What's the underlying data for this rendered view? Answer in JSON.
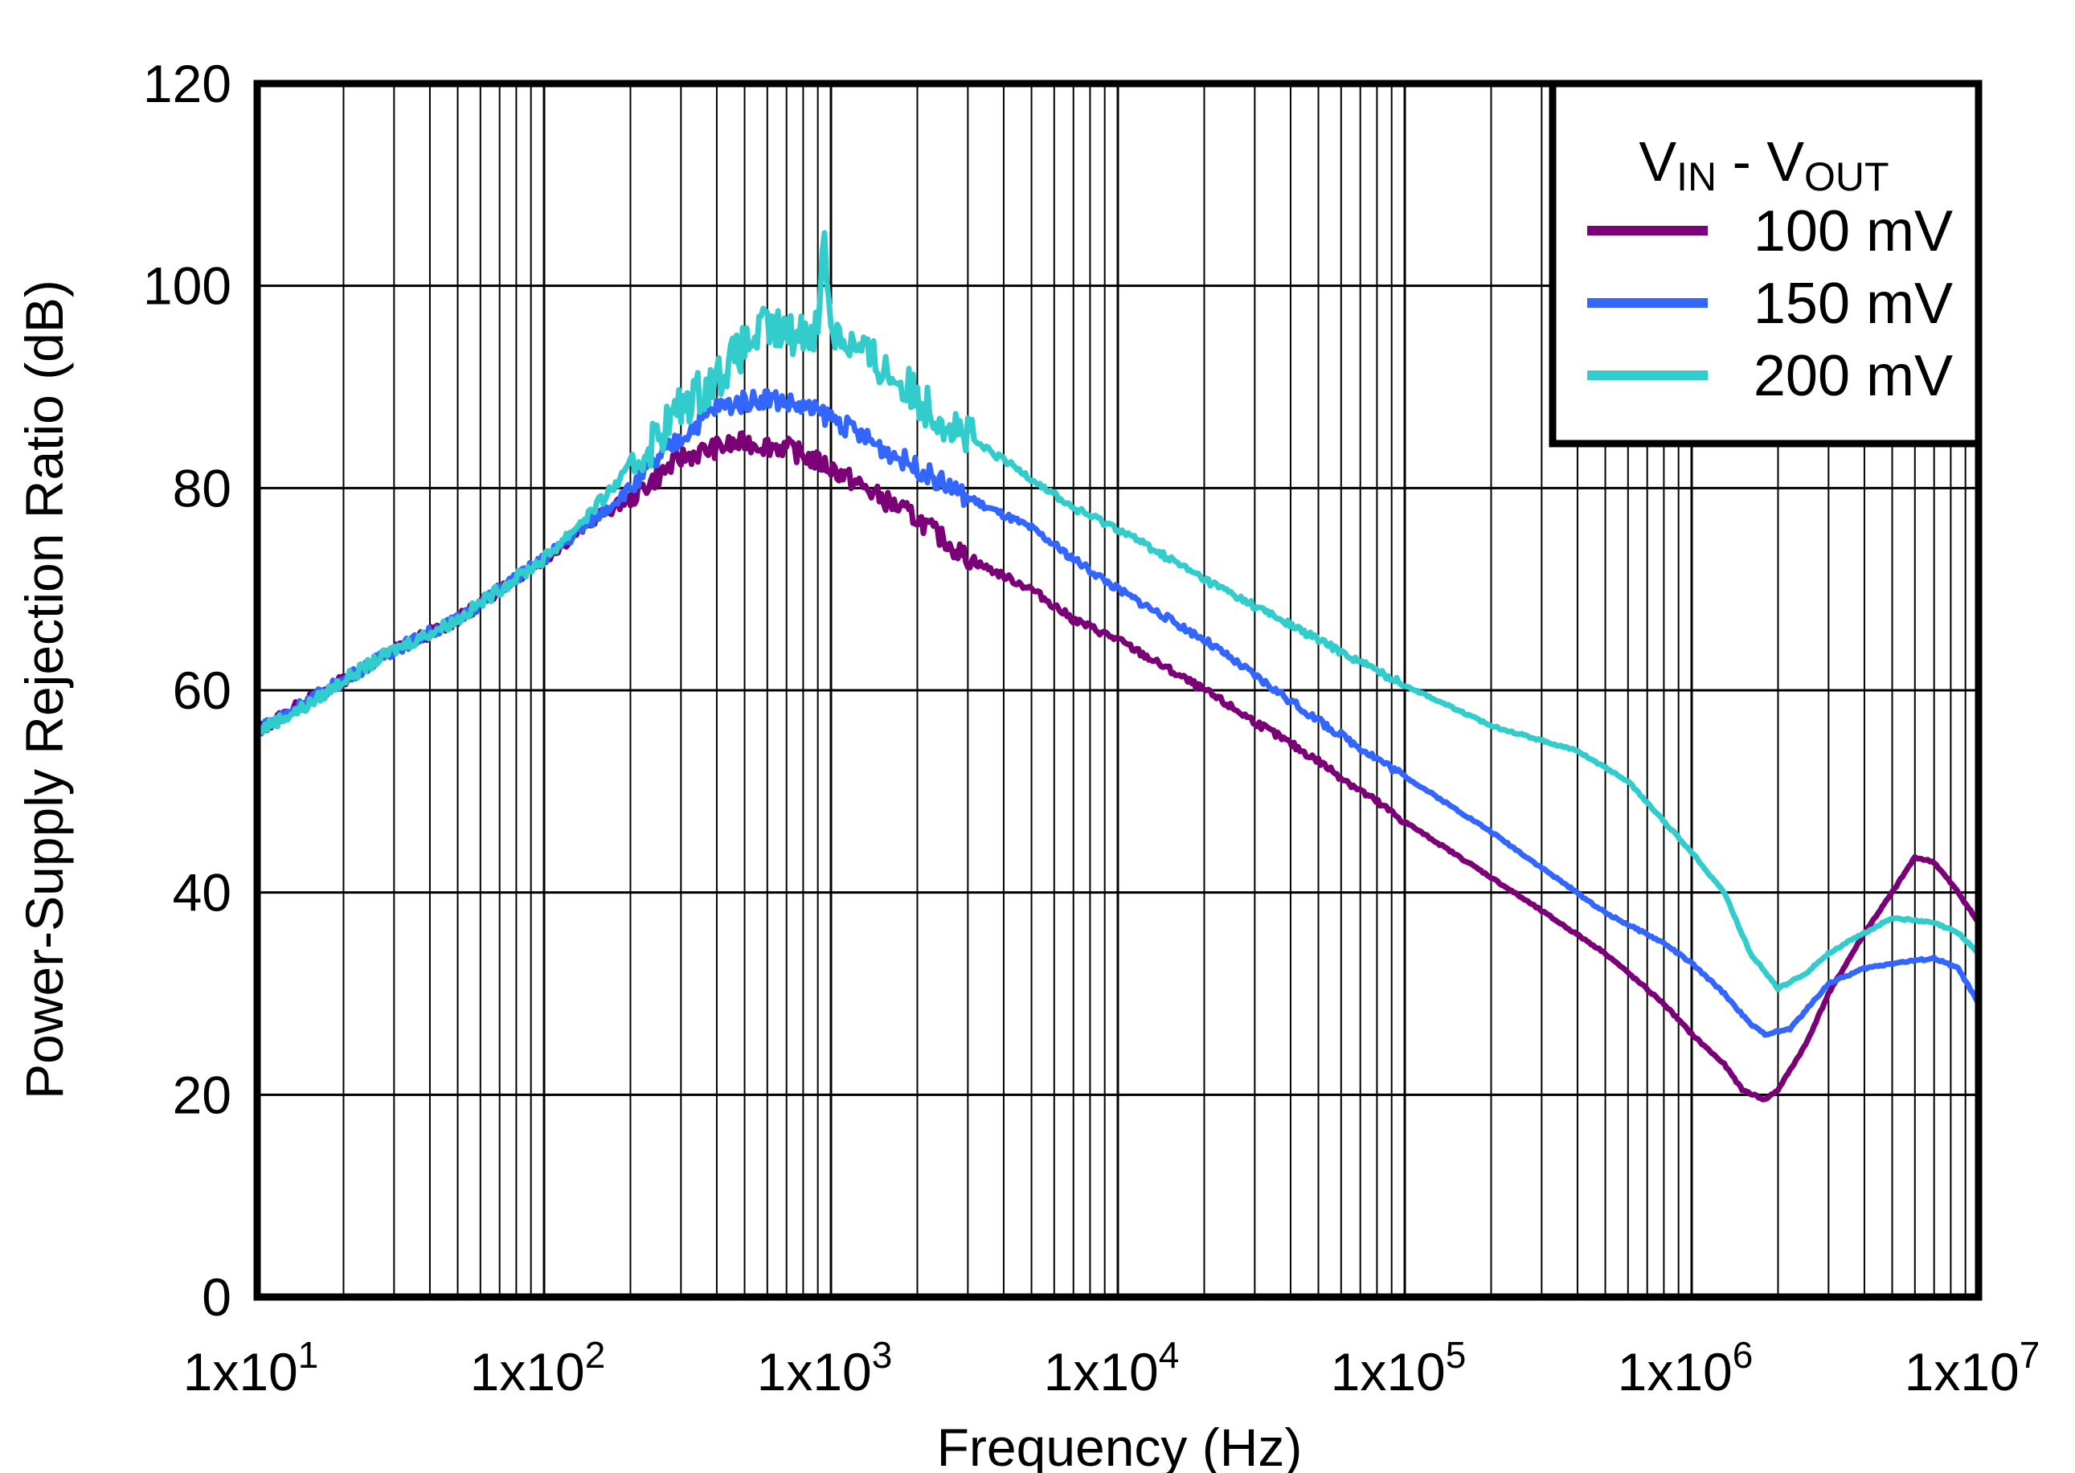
{
  "chart_data": {
    "type": "line",
    "title": "",
    "xlabel": "Frequency (Hz)",
    "ylabel": "Power-Supply Rejection Ratio (dB)",
    "xscale": "log",
    "xlim": [
      10,
      10000000
    ],
    "ylim": [
      0,
      120
    ],
    "grid": true,
    "x_tick_labels": [
      {
        "base": "1x10",
        "exp": "1"
      },
      {
        "base": "1x10",
        "exp": "2"
      },
      {
        "base": "1x10",
        "exp": "3"
      },
      {
        "base": "1x10",
        "exp": "4"
      },
      {
        "base": "1x10",
        "exp": "5"
      },
      {
        "base": "1x10",
        "exp": "6"
      },
      {
        "base": "1x10",
        "exp": "7"
      }
    ],
    "y_ticks": [
      0,
      20,
      40,
      60,
      80,
      100,
      120
    ],
    "legend": {
      "placement": "top-right",
      "title_main": "V",
      "title_sub1": "IN",
      "title_sep": " - V",
      "title_sub2": "OUT"
    },
    "series": [
      {
        "name": "100 mV",
        "color": "#7b0077",
        "points": [
          [
            10,
            56
          ],
          [
            15,
            59
          ],
          [
            20,
            61
          ],
          [
            30,
            64
          ],
          [
            50,
            67
          ],
          [
            70,
            70
          ],
          [
            100,
            73
          ],
          [
            150,
            77
          ],
          [
            200,
            79
          ],
          [
            300,
            83
          ],
          [
            400,
            84
          ],
          [
            500,
            84.5
          ],
          [
            700,
            84
          ],
          [
            1000,
            82
          ],
          [
            1500,
            79
          ],
          [
            2000,
            77
          ],
          [
            3000,
            73
          ],
          [
            5000,
            70
          ],
          [
            7000,
            67
          ],
          [
            10000,
            65
          ],
          [
            20000,
            60
          ],
          [
            50000,
            53
          ],
          [
            100000,
            47
          ],
          [
            200000,
            41.5
          ],
          [
            500000,
            34
          ],
          [
            800000,
            29
          ],
          [
            1000000,
            26
          ],
          [
            1300000,
            23
          ],
          [
            1500000,
            20.5
          ],
          [
            1800000,
            19.5
          ],
          [
            2000000,
            20.5
          ],
          [
            2500000,
            25
          ],
          [
            3000000,
            30
          ],
          [
            4000000,
            36
          ],
          [
            5000000,
            40
          ],
          [
            6000000,
            43.5
          ],
          [
            7000000,
            43
          ],
          [
            8500000,
            40
          ],
          [
            10000000,
            37
          ]
        ]
      },
      {
        "name": "150 mV",
        "color": "#3366ff",
        "points": [
          [
            10,
            56
          ],
          [
            15,
            59
          ],
          [
            20,
            61
          ],
          [
            30,
            64
          ],
          [
            50,
            67
          ],
          [
            70,
            70
          ],
          [
            100,
            73
          ],
          [
            150,
            77
          ],
          [
            200,
            80
          ],
          [
            300,
            85
          ],
          [
            400,
            88
          ],
          [
            600,
            89
          ],
          [
            800,
            88
          ],
          [
            1000,
            87
          ],
          [
            1500,
            84
          ],
          [
            2000,
            82
          ],
          [
            3000,
            79
          ],
          [
            5000,
            76
          ],
          [
            7000,
            73
          ],
          [
            10000,
            70
          ],
          [
            20000,
            65
          ],
          [
            50000,
            57
          ],
          [
            100000,
            51.5
          ],
          [
            200000,
            46
          ],
          [
            500000,
            38
          ],
          [
            800000,
            35
          ],
          [
            1000000,
            33
          ],
          [
            1300000,
            30
          ],
          [
            1600000,
            27
          ],
          [
            1800000,
            26
          ],
          [
            2200000,
            26.5
          ],
          [
            3000000,
            31
          ],
          [
            4000000,
            32.5
          ],
          [
            5000000,
            33
          ],
          [
            7000000,
            33.5
          ],
          [
            8500000,
            32.5
          ],
          [
            10000000,
            29
          ]
        ]
      },
      {
        "name": "200 mV",
        "color": "#33cccc",
        "points": [
          [
            10,
            56
          ],
          [
            15,
            58.5
          ],
          [
            20,
            61
          ],
          [
            30,
            64
          ],
          [
            50,
            67
          ],
          [
            70,
            70
          ],
          [
            100,
            73
          ],
          [
            150,
            78
          ],
          [
            200,
            82
          ],
          [
            300,
            88
          ],
          [
            400,
            91
          ],
          [
            500,
            94
          ],
          [
            600,
            96
          ],
          [
            700,
            95
          ],
          [
            900,
            96
          ],
          [
            950,
            105
          ],
          [
            1000,
            96
          ],
          [
            1200,
            94
          ],
          [
            1500,
            92
          ],
          [
            2000,
            89
          ],
          [
            3000,
            85
          ],
          [
            5000,
            81
          ],
          [
            7000,
            78
          ],
          [
            10000,
            76
          ],
          [
            20000,
            71
          ],
          [
            50000,
            65
          ],
          [
            100000,
            60.5
          ],
          [
            200000,
            56.5
          ],
          [
            400000,
            54
          ],
          [
            600000,
            51
          ],
          [
            1000000,
            44
          ],
          [
            1300000,
            40
          ],
          [
            1600000,
            34
          ],
          [
            2000000,
            30.5
          ],
          [
            2500000,
            32
          ],
          [
            3000000,
            34
          ],
          [
            4000000,
            36
          ],
          [
            5000000,
            37.5
          ],
          [
            7000000,
            37
          ],
          [
            8500000,
            36
          ],
          [
            10000000,
            34
          ]
        ]
      }
    ]
  }
}
